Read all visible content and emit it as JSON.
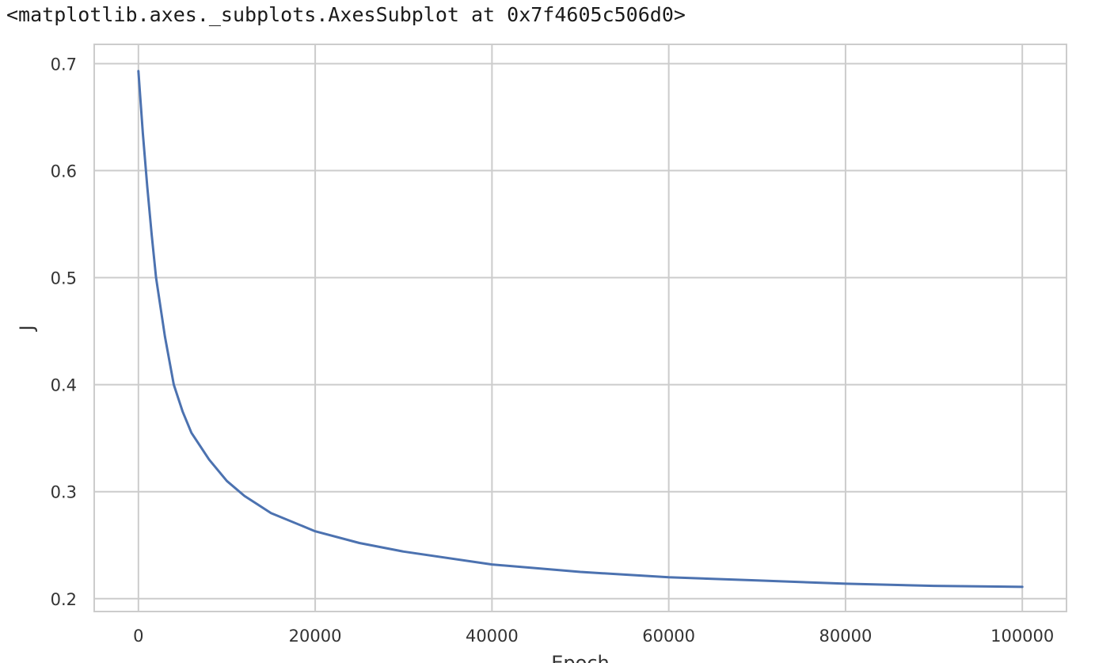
{
  "output_repr": "<matplotlib.axes._subplots.AxesSubplot at 0x7f4605c506d0>",
  "chart_data": {
    "type": "line",
    "title": "",
    "xlabel": "Epoch",
    "ylabel": "J",
    "xlim": [
      -5000,
      105000
    ],
    "ylim": [
      0.188,
      0.718
    ],
    "x_ticks": [
      0,
      20000,
      40000,
      60000,
      80000,
      100000
    ],
    "x_tick_labels": [
      "0",
      "20000",
      "40000",
      "60000",
      "80000",
      "100000"
    ],
    "y_ticks": [
      0.2,
      0.3,
      0.4,
      0.5,
      0.6,
      0.7
    ],
    "y_tick_labels": [
      "0.2",
      "0.3",
      "0.4",
      "0.5",
      "0.6",
      "0.7"
    ],
    "grid": true,
    "legend": "none",
    "series": [
      {
        "color": "#4c72b0",
        "x": [
          0,
          500,
          1000,
          1500,
          2000,
          3000,
          4000,
          5000,
          6000,
          8000,
          10000,
          12000,
          15000,
          20000,
          25000,
          30000,
          40000,
          50000,
          60000,
          70000,
          80000,
          90000,
          100000
        ],
        "y": [
          0.693,
          0.635,
          0.585,
          0.54,
          0.5,
          0.445,
          0.4,
          0.375,
          0.355,
          0.33,
          0.31,
          0.296,
          0.28,
          0.263,
          0.252,
          0.244,
          0.232,
          0.225,
          0.22,
          0.217,
          0.214,
          0.212,
          0.211
        ]
      }
    ]
  }
}
